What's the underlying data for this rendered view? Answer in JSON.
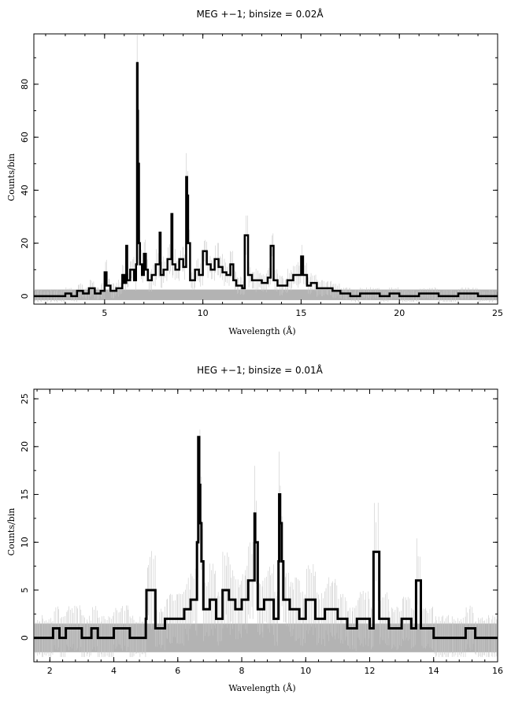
{
  "chart_data": [
    {
      "type": "line",
      "title": "MEG +−1; binsize = 0.02Å",
      "xlabel": "Wavelength (Å)",
      "ylabel": "Counts/bin",
      "xlim": [
        1.4,
        25
      ],
      "ylim": [
        -3,
        99
      ],
      "xticks": [
        5,
        10,
        15,
        20,
        25
      ],
      "yticks": [
        0,
        20,
        40,
        60,
        80
      ],
      "grid": false,
      "background_band": {
        "y": [
          -1.5,
          2.5
        ],
        "color": "#b3b3b3"
      },
      "series": [
        {
          "color": "#000000",
          "x": [
            1.4,
            2.0,
            2.5,
            3.0,
            3.3,
            3.6,
            3.9,
            4.2,
            4.5,
            4.8,
            5.0,
            5.1,
            5.3,
            5.6,
            5.9,
            6.0,
            6.1,
            6.15,
            6.3,
            6.5,
            6.6,
            6.65,
            6.68,
            6.7,
            6.75,
            6.8,
            6.9,
            7.0,
            7.1,
            7.2,
            7.4,
            7.6,
            7.8,
            7.85,
            8.0,
            8.2,
            8.4,
            8.45,
            8.6,
            8.8,
            9.0,
            9.15,
            9.2,
            9.25,
            9.35,
            9.6,
            9.8,
            10.0,
            10.2,
            10.4,
            10.6,
            10.8,
            11.0,
            11.2,
            11.4,
            11.55,
            11.7,
            12.0,
            12.13,
            12.3,
            12.5,
            12.8,
            13.0,
            13.3,
            13.45,
            13.6,
            13.8,
            14.0,
            14.3,
            14.6,
            15.0,
            15.1,
            15.3,
            15.5,
            15.8,
            16.2,
            16.6,
            17.0,
            17.5,
            18.0,
            18.5,
            19.0,
            19.5,
            20.0,
            21.0,
            21.9,
            22.0,
            23.0,
            24.0,
            25.0
          ],
          "y": [
            0,
            0,
            0,
            1,
            0,
            2,
            1,
            3,
            1,
            2,
            9,
            4,
            2,
            3,
            8,
            5,
            19,
            6,
            10,
            6,
            12,
            88,
            70,
            50,
            20,
            12,
            8,
            16,
            10,
            6,
            8,
            12,
            24,
            8,
            10,
            14,
            31,
            12,
            10,
            14,
            11,
            45,
            38,
            20,
            6,
            10,
            8,
            17,
            12,
            10,
            14,
            11,
            9,
            8,
            12,
            6,
            4,
            3,
            23,
            8,
            6,
            6,
            5,
            7,
            19,
            6,
            4,
            4,
            6,
            8,
            15,
            8,
            4,
            5,
            3,
            3,
            2,
            1,
            0,
            1,
            1,
            0,
            1,
            0,
            1,
            1,
            0,
            1,
            0,
            0
          ]
        }
      ]
    },
    {
      "type": "line",
      "title": "HEG +−1; binsize = 0.01Å",
      "xlabel": "Wavelength (Å)",
      "ylabel": "Counts/bin",
      "xlim": [
        1.5,
        16
      ],
      "ylim": [
        -2.5,
        26
      ],
      "xticks": [
        2,
        4,
        6,
        8,
        10,
        12,
        14,
        16
      ],
      "yticks": [
        0,
        5,
        10,
        15,
        20,
        25
      ],
      "grid": false,
      "background_band": {
        "y": [
          -1.5,
          1.5
        ],
        "color": "#b3b3b3"
      },
      "series": [
        {
          "color": "#000000",
          "x": [
            1.5,
            2.1,
            2.3,
            2.5,
            3.0,
            3.3,
            3.5,
            4.0,
            4.5,
            5.0,
            5.02,
            5.3,
            5.6,
            6.0,
            6.2,
            6.4,
            6.6,
            6.64,
            6.67,
            6.7,
            6.74,
            6.8,
            7.0,
            7.2,
            7.4,
            7.6,
            7.8,
            8.0,
            8.2,
            8.4,
            8.42,
            8.5,
            8.7,
            9.0,
            9.15,
            9.17,
            9.2,
            9.25,
            9.3,
            9.5,
            9.8,
            10.0,
            10.3,
            10.6,
            11.0,
            11.3,
            11.6,
            12.0,
            12.12,
            12.3,
            12.6,
            13.0,
            13.3,
            13.45,
            13.6,
            14.0,
            14.5,
            15.0,
            15.3,
            15.6,
            16.0
          ],
          "y": [
            0,
            1,
            0,
            1,
            0,
            1,
            0,
            1,
            0,
            2,
            5,
            1,
            2,
            2,
            3,
            4,
            10,
            21,
            16,
            12,
            8,
            3,
            4,
            2,
            5,
            4,
            3,
            4,
            6,
            13,
            10,
            3,
            4,
            2,
            8,
            15,
            12,
            8,
            4,
            3,
            2,
            4,
            2,
            3,
            2,
            1,
            2,
            1,
            9,
            2,
            1,
            2,
            1,
            6,
            1,
            0,
            0,
            1,
            0,
            0,
            0
          ]
        }
      ]
    }
  ]
}
